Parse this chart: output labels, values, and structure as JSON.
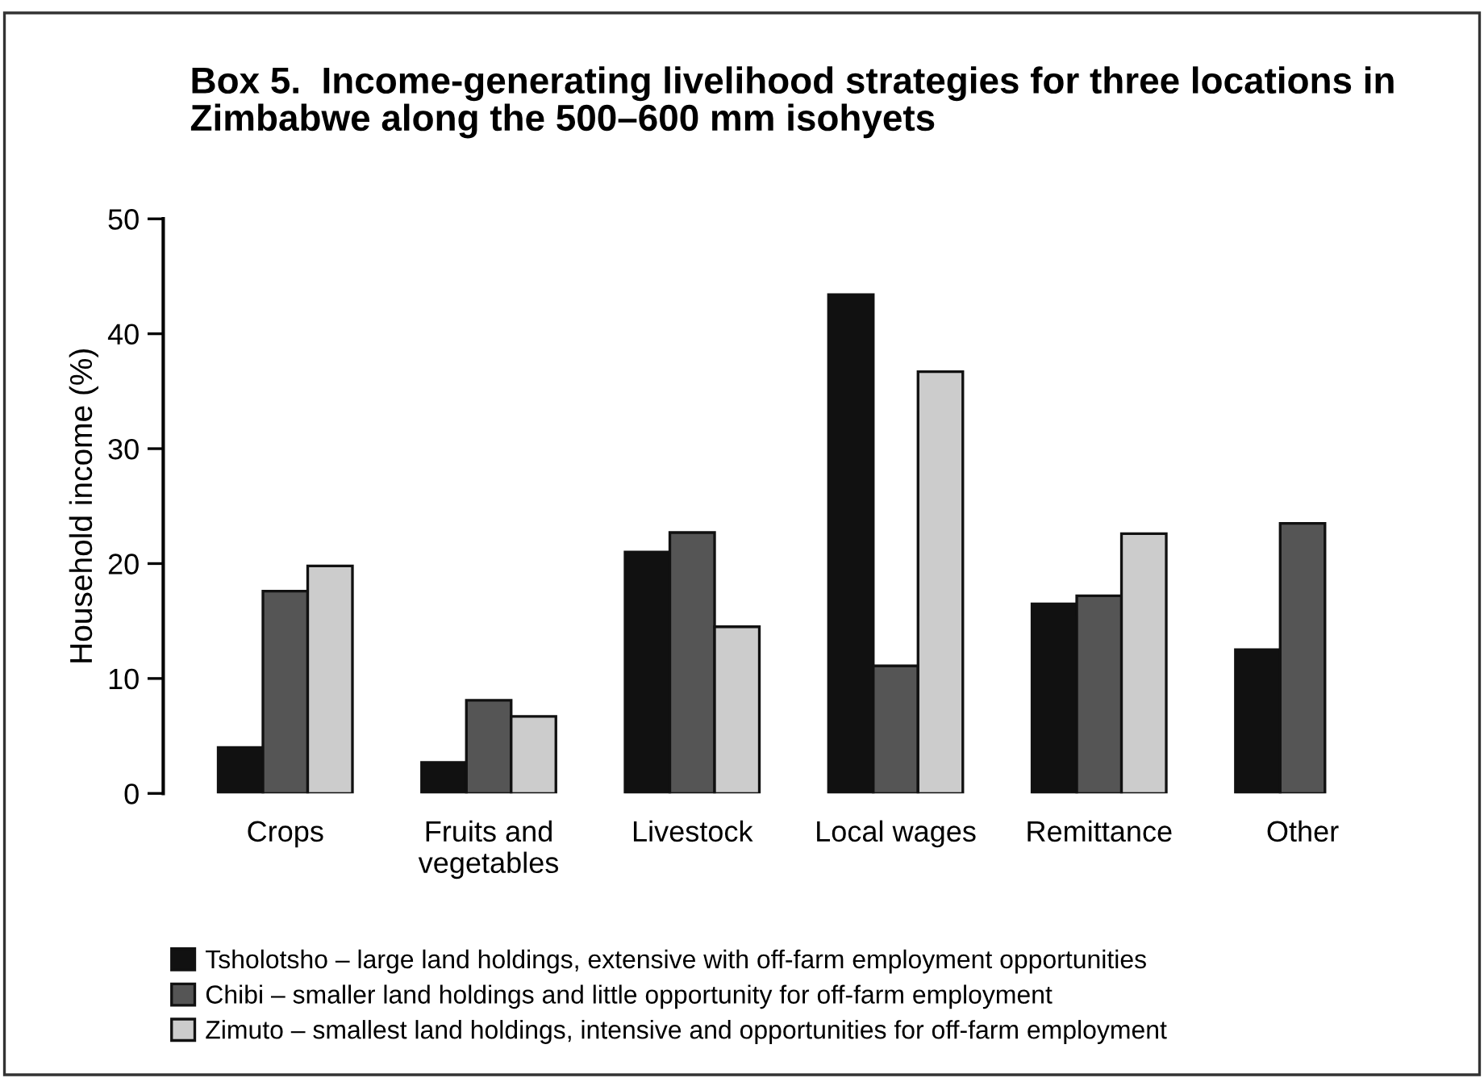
{
  "chart_data": {
    "type": "bar",
    "title": "Box 5.  Income-generating livelihood strategies for three locations in\nZimbabwe along the 500–600 mm isohyets",
    "ylabel": "Household income (%)",
    "categories": [
      "Crops",
      "Fruits and\nvegetables",
      "Livestock",
      "Local wages",
      "Remittance",
      "Other"
    ],
    "series": [
      {
        "name": "Tsholotsho – large land holdings, extensive with off-farm employment opportunities",
        "color": "#111111",
        "values": [
          4,
          2.7,
          21,
          43.4,
          16.5,
          12.5
        ]
      },
      {
        "name": "Chibi – smaller land holdings and little opportunity for off-farm employment",
        "color": "#555555",
        "values": [
          17.6,
          8.1,
          22.7,
          11.1,
          17.2,
          23.5
        ]
      },
      {
        "name": "Zimuto – smallest land holdings, intensive and opportunities for off-farm employment",
        "color": "#cccccc",
        "values": [
          19.8,
          6.7,
          14.5,
          36.7,
          22.6,
          null
        ]
      }
    ],
    "ylim": [
      0,
      50
    ],
    "yticks": [
      0,
      10,
      20,
      30,
      40,
      50
    ],
    "grid": false,
    "legend": "bottom"
  }
}
